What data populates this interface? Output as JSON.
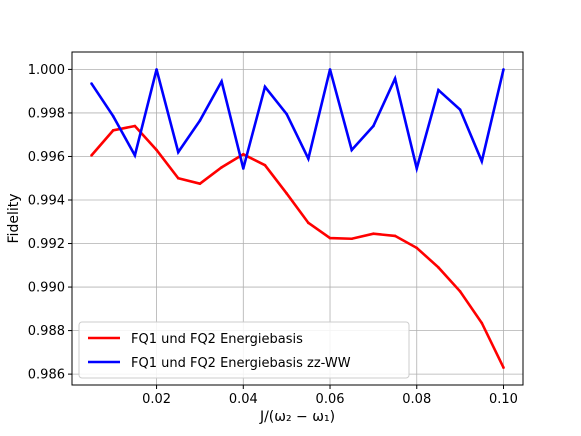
{
  "chart_data": {
    "type": "line",
    "xlabel": "J/(ω₂ − ω₁)",
    "ylabel": "Fidelity",
    "xlim": [
      -0.0,
      0.104
    ],
    "ylim": [
      0.9855,
      1.0008
    ],
    "xticks": [
      0.02,
      0.04,
      0.06,
      0.08,
      0.1
    ],
    "xtick_labels": [
      "0.02",
      "0.04",
      "0.06",
      "0.08",
      "0.10"
    ],
    "yticks": [
      0.986,
      0.988,
      0.99,
      0.992,
      0.994,
      0.996,
      0.998,
      1.0
    ],
    "ytick_labels": [
      "0.986",
      "0.988",
      "0.990",
      "0.992",
      "0.994",
      "0.996",
      "0.998",
      "1.000"
    ],
    "grid": true,
    "legend_position": "lower-left",
    "x": [
      0.005,
      0.01,
      0.015,
      0.02,
      0.025,
      0.03,
      0.035,
      0.04,
      0.045,
      0.05,
      0.055,
      0.06,
      0.065,
      0.07,
      0.075,
      0.08,
      0.085,
      0.09,
      0.095,
      0.1
    ],
    "series": [
      {
        "name": "FQ1 und FQ2 Energiebasis",
        "color": "#ff0000",
        "values": [
          0.99605,
          0.9972,
          0.9974,
          0.9963,
          0.995,
          0.99475,
          0.9955,
          0.9961,
          0.9956,
          0.9943,
          0.99295,
          0.99225,
          0.99222,
          0.99245,
          0.99235,
          0.9918,
          0.9909,
          0.9898,
          0.98835,
          0.9863
        ]
      },
      {
        "name": "FQ1 und FQ2 Energiebasis zz-WW",
        "color": "#0000ff",
        "values": [
          0.99935,
          0.99785,
          0.99605,
          1.0,
          0.9962,
          0.99765,
          0.99945,
          0.99545,
          0.9992,
          0.99795,
          0.9959,
          1.0,
          0.9963,
          0.9974,
          0.99958,
          0.99545,
          0.99905,
          0.99815,
          0.99578,
          1.0
        ]
      }
    ]
  }
}
